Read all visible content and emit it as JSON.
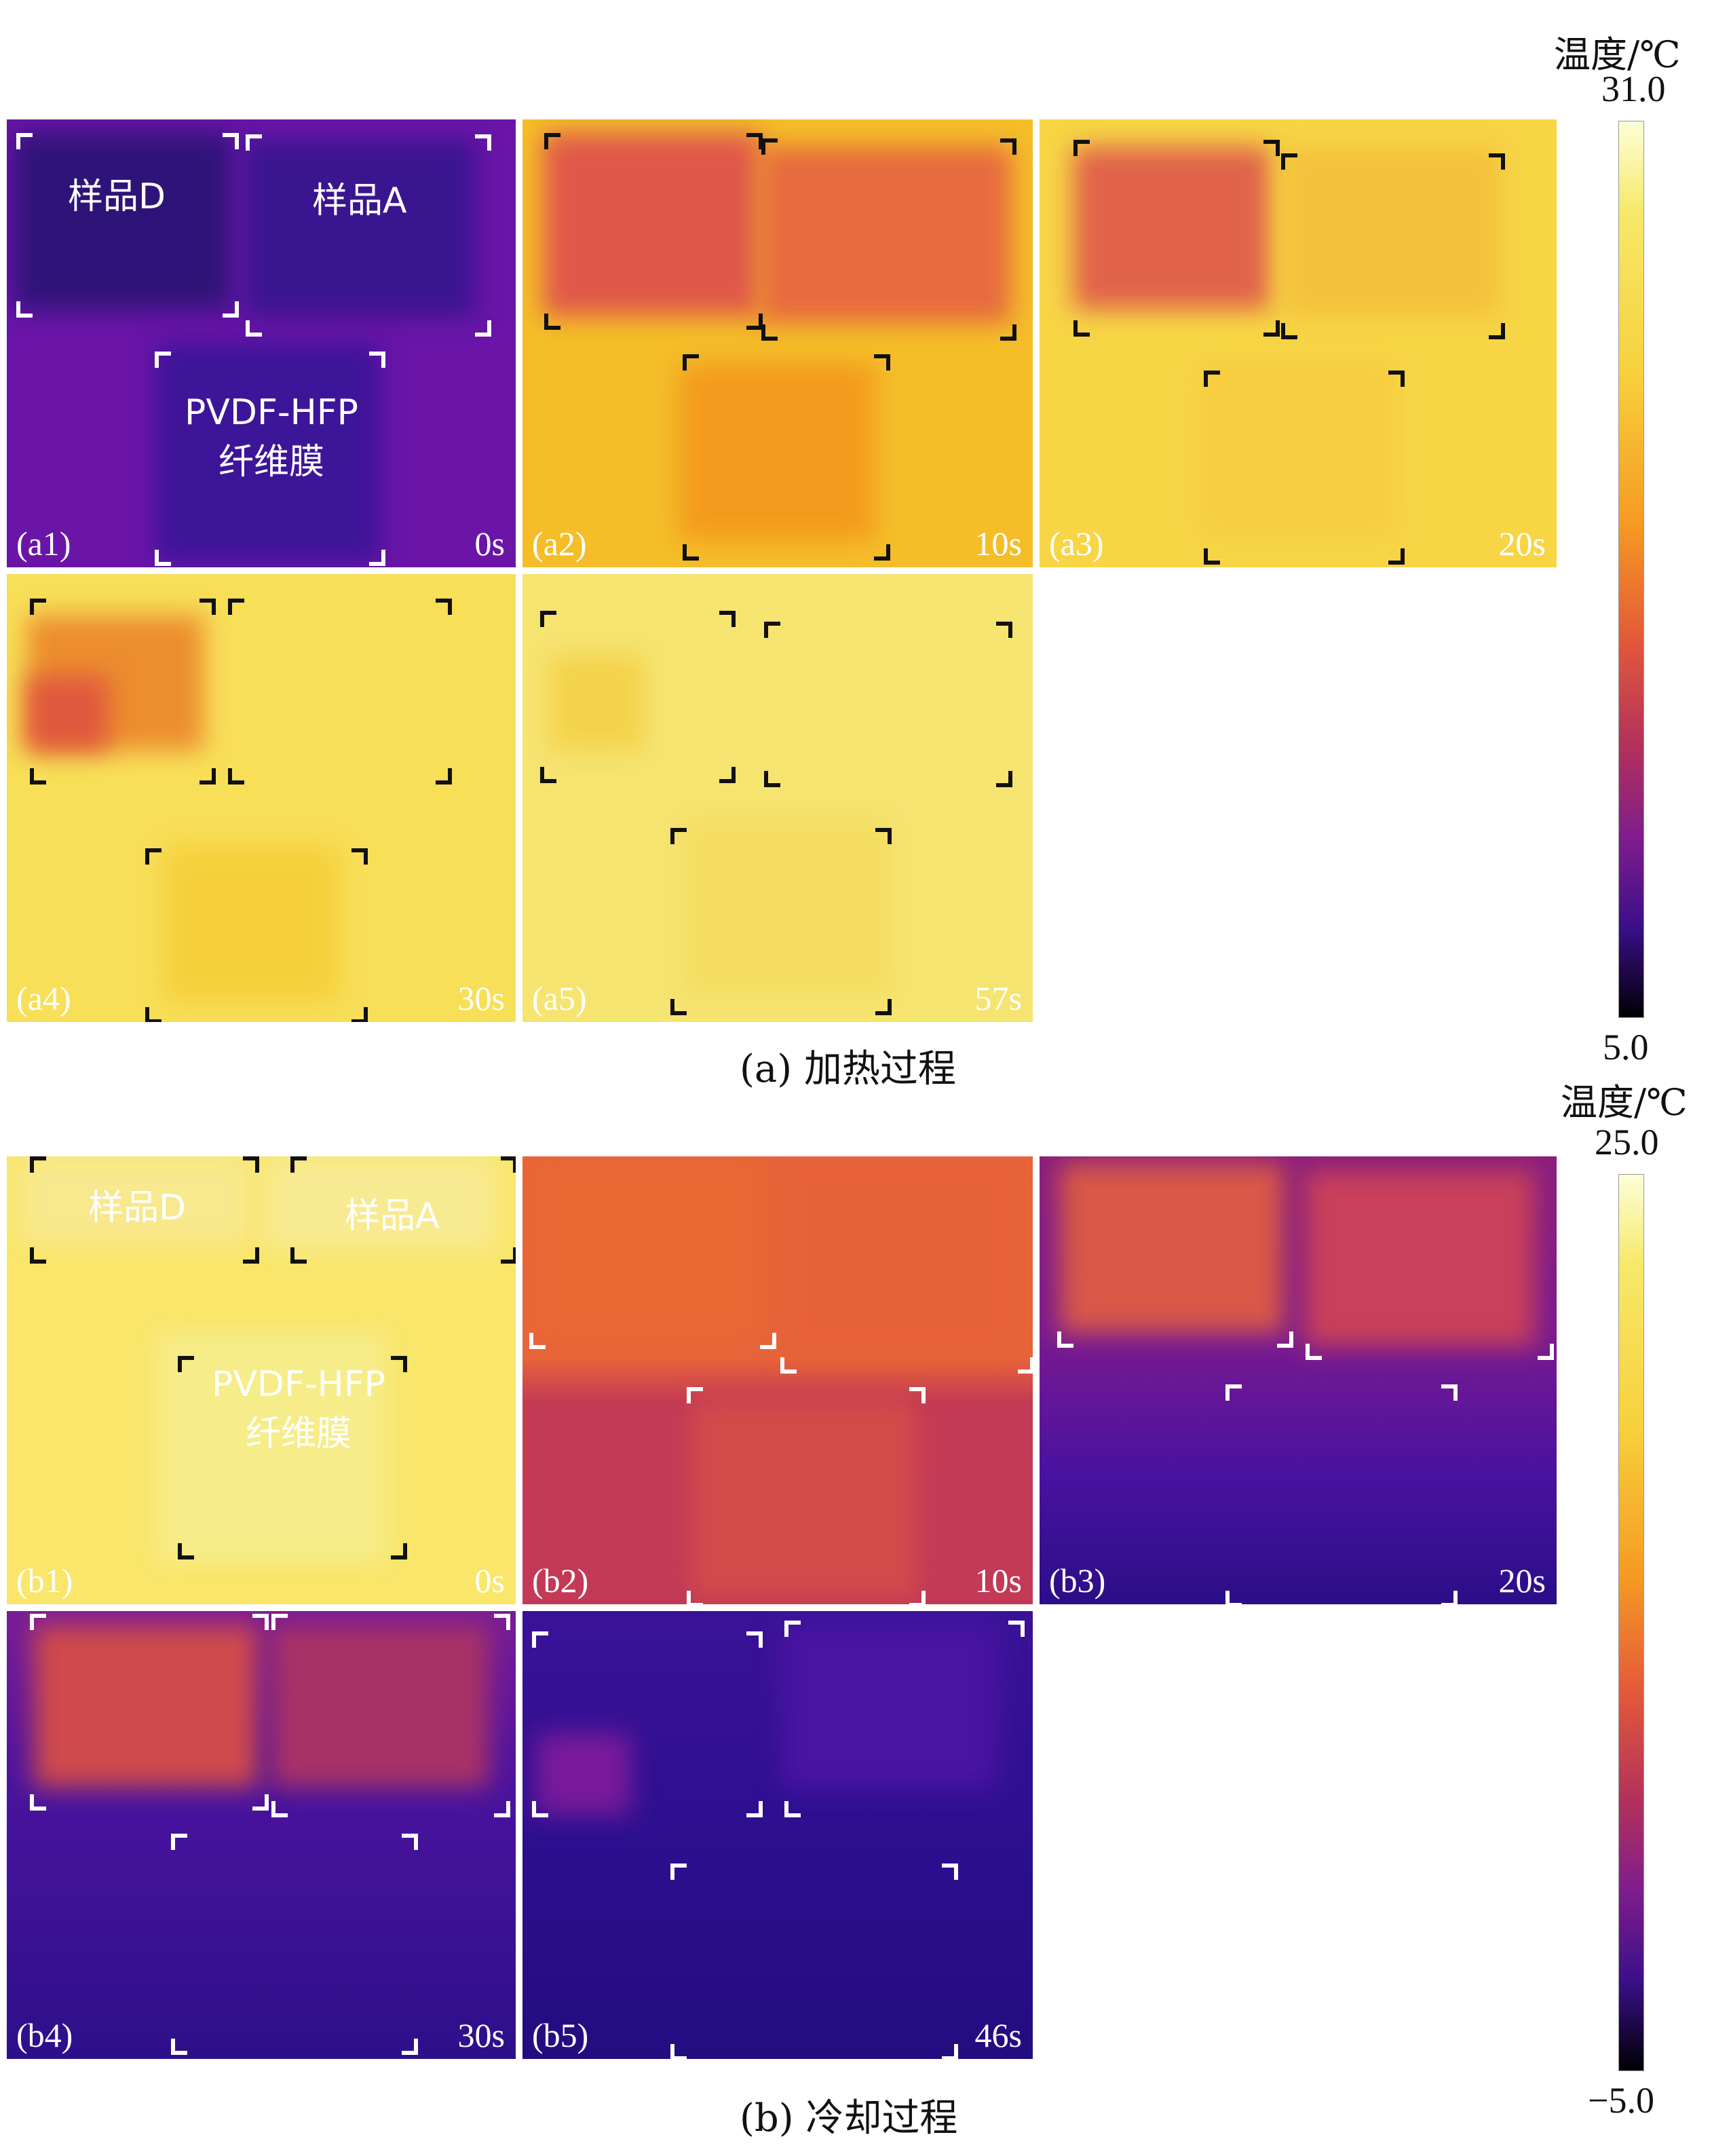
{
  "colorbar_a": {
    "unit_label": "温度/℃",
    "max": "31.0",
    "min": "5.0",
    "max_value": 31.0,
    "min_value": 5.0
  },
  "colorbar_b": {
    "unit_label": "温度/℃",
    "max": "25.0",
    "min": "−5.0",
    "max_value": 25.0,
    "min_value": -5.0
  },
  "captions": {
    "a": "(a) 加热过程",
    "b": "(b) 冷却过程"
  },
  "sample_labels": {
    "d": "样品D",
    "a": "样品A",
    "pvdf_line1": "PVDF-HFP",
    "pvdf_line2": "纤维膜"
  },
  "panels": {
    "a1": {
      "id": "(a1)",
      "time": "0s"
    },
    "a2": {
      "id": "(a2)",
      "time": "10s"
    },
    "a3": {
      "id": "(a3)",
      "time": "20s"
    },
    "a4": {
      "id": "(a4)",
      "time": "30s"
    },
    "a5": {
      "id": "(a5)",
      "time": "57s"
    },
    "b1": {
      "id": "(b1)",
      "time": "0s"
    },
    "b2": {
      "id": "(b2)",
      "time": "10s"
    },
    "b3": {
      "id": "(b3)",
      "time": "20s"
    },
    "b4": {
      "id": "(b4)",
      "time": "30s"
    },
    "b5": {
      "id": "(b5)",
      "time": "46s"
    }
  },
  "colors": {
    "palette": [
      "#000004",
      "#1f0c48",
      "#550f6d",
      "#88226a",
      "#ba3655",
      "#e35933",
      "#f98e09",
      "#f6d746",
      "#fcffa4"
    ]
  }
}
